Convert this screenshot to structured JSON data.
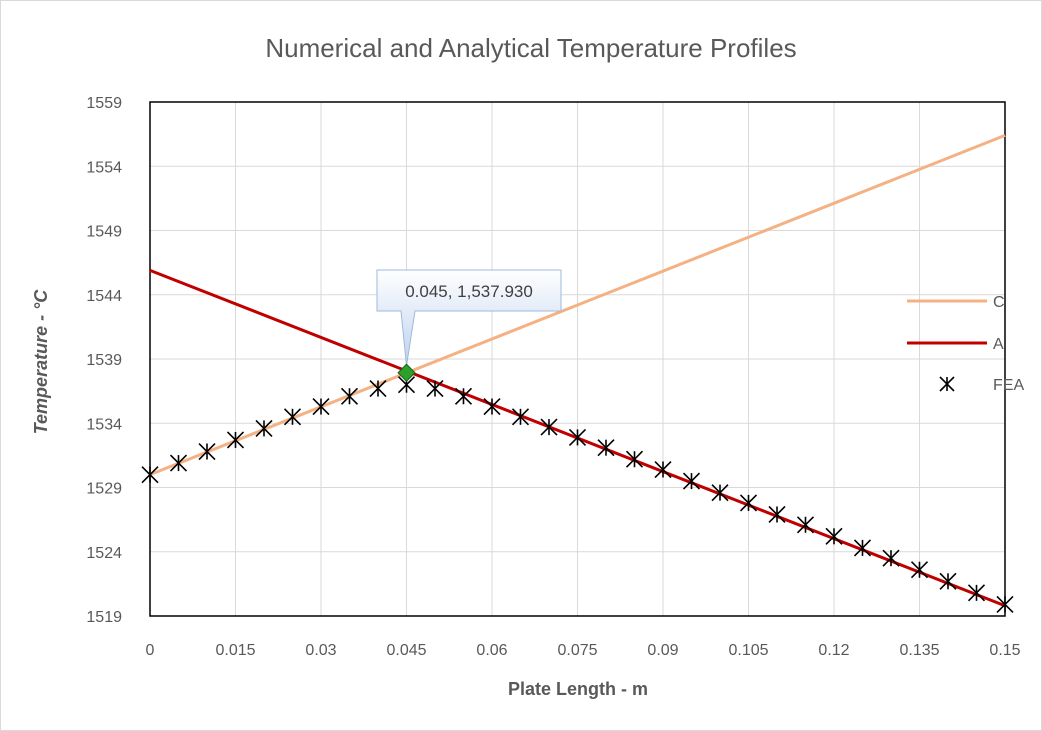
{
  "chart_data": {
    "type": "scatter",
    "title": "Numerical and Analytical Temperature Profiles",
    "xlabel": "Plate Length - m",
    "ylabel": "Temperature - °C",
    "xlim": [
      0,
      0.15
    ],
    "ylim": [
      1519,
      1559
    ],
    "x_ticks": [
      "0",
      "0.015",
      "0.03",
      "0.045",
      "0.06",
      "0.075",
      "0.09",
      "0.105",
      "0.12",
      "0.135",
      "0.15"
    ],
    "y_ticks": [
      "1519",
      "1524",
      "1529",
      "1534",
      "1539",
      "1544",
      "1549",
      "1554",
      "1559"
    ],
    "grid": true,
    "legend_position": "right",
    "series": [
      {
        "name": "C",
        "kind": "line",
        "color": "#f4b183",
        "x": [
          0,
          0.15
        ],
        "y": [
          1530.0,
          1556.4
        ]
      },
      {
        "name": "A",
        "kind": "line",
        "color": "#c00000",
        "x": [
          0,
          0.15
        ],
        "y": [
          1545.9,
          1519.8
        ]
      },
      {
        "name": "FEA",
        "kind": "marker",
        "color": "#000000",
        "x": [
          0,
          0.005,
          0.01,
          0.015,
          0.02,
          0.025,
          0.03,
          0.035,
          0.04,
          0.045,
          0.05,
          0.055,
          0.06,
          0.065,
          0.07,
          0.075,
          0.08,
          0.085,
          0.09,
          0.095,
          0.1,
          0.105,
          0.11,
          0.115,
          0.12,
          0.125,
          0.13,
          0.135,
          0.14,
          0.145,
          0.15
        ],
        "y": [
          1530.0,
          1530.9,
          1531.8,
          1532.7,
          1533.6,
          1534.5,
          1535.3,
          1536.1,
          1536.7,
          1537.0,
          1536.7,
          1536.1,
          1535.3,
          1534.5,
          1533.7,
          1532.9,
          1532.1,
          1531.2,
          1530.4,
          1529.5,
          1528.6,
          1527.8,
          1526.9,
          1526.1,
          1525.2,
          1524.3,
          1523.5,
          1522.6,
          1521.7,
          1520.8,
          1519.9
        ]
      }
    ],
    "annotation": {
      "label": "0.045, 1,537.930",
      "x": 0.045,
      "y": 1537.93,
      "marker_color": "#2ca02c"
    }
  }
}
